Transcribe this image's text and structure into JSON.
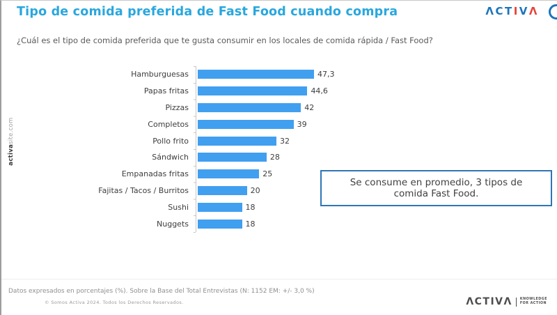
{
  "slide": {
    "title": "Tipo de comida preferida de Fast Food cuando compra",
    "question": "¿Cuál es el tipo de comida preferida que te gusta consumir en los locales de comida  rápida / Fast Food?",
    "callout_text": "Se consume en promedio,  3 tipos de comida Fast Food.",
    "footnote": "Datos expresados en porcentajes (%). Sobre la Base del Total Entrevistas (N: 1152  EM: +/- 3,0 %)",
    "copyright": "© Somos Activa 2024. Todos los Derechos Reservados.",
    "side_brand_bold": "activa",
    "side_brand_light": "site.com"
  },
  "branding": {
    "accent_blue": "#1c75bc",
    "accent_red": "#e8433a",
    "logo_top_letters": [
      {
        "ch": "Λ",
        "color": "#1c75bc"
      },
      {
        "ch": "C",
        "color": "#1c75bc"
      },
      {
        "ch": "T",
        "color": "#1c75bc"
      },
      {
        "ch": "I",
        "color": "#e8433a"
      },
      {
        "ch": "V",
        "color": "#1c75bc"
      },
      {
        "ch": "Λ",
        "color": "#e8433a"
      }
    ],
    "logo_bottom_word": "ΛCTIVΛ",
    "logo_bottom_tagline_line1": "KNOWLEDGE",
    "logo_bottom_tagline_line2": "FOR ACTION"
  },
  "chart_data": {
    "type": "bar",
    "orientation": "horizontal",
    "title": "Tipo de comida preferida de Fast Food cuando compra",
    "xlabel": "",
    "ylabel": "",
    "xlim": [
      0,
      50
    ],
    "grid": false,
    "legend": "none",
    "value_format": "percent",
    "bar_color": "#419ff0",
    "categories": [
      "Hamburguesas",
      "Papas fritas",
      "Pizzas",
      "Completos",
      "Pollo frito",
      "Sándwich",
      "Empanadas fritas",
      "Fajitas / Tacos / Burritos",
      "Sushi",
      "Nuggets"
    ],
    "values": [
      47.3,
      44.6,
      42,
      39,
      32,
      28,
      25,
      20,
      18,
      18
    ],
    "value_labels": [
      "47,3",
      "44,6",
      "42",
      "39",
      "32",
      "28",
      "25",
      "20",
      "18",
      "18"
    ]
  }
}
